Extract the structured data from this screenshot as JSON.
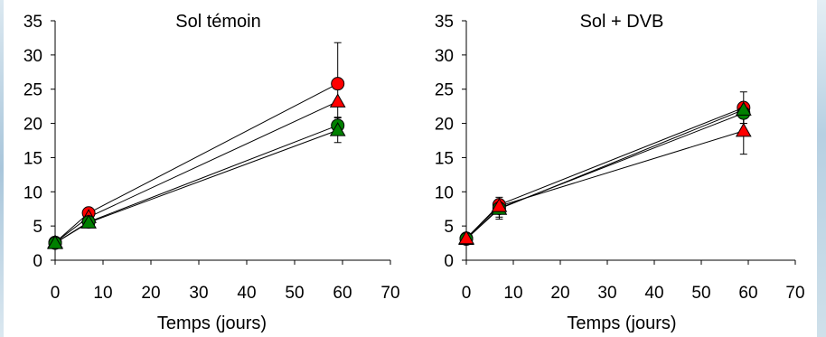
{
  "chart_data": [
    {
      "type": "line",
      "title": "Sol témoin",
      "xlabel": "Temps (jours)",
      "ylabel": "",
      "xlim": [
        0,
        70
      ],
      "ylim": [
        0,
        35
      ],
      "xticks": [
        0,
        10,
        20,
        30,
        40,
        50,
        60,
        70
      ],
      "yticks": [
        0,
        5,
        10,
        15,
        20,
        25,
        30,
        35
      ],
      "grid": false,
      "x": [
        0,
        7,
        59
      ],
      "series": [
        {
          "marker": "circle",
          "color": "#ff0000",
          "values": [
            2.6,
            6.9,
            25.8
          ],
          "error": [
            0.4,
            0.6,
            6.0
          ]
        },
        {
          "marker": "triangle",
          "color": "#ff0000",
          "values": [
            2.6,
            6.3,
            23.2
          ],
          "error": [
            0.3,
            0.5,
            0
          ]
        },
        {
          "marker": "circle",
          "color": "#008000",
          "values": [
            2.5,
            5.6,
            19.7
          ],
          "error": [
            0.3,
            0.5,
            1.2
          ]
        },
        {
          "marker": "triangle",
          "color": "#008000",
          "values": [
            2.5,
            5.5,
            19.0
          ],
          "error": [
            0.3,
            0.4,
            1.8
          ]
        }
      ]
    },
    {
      "type": "line",
      "title": "Sol + DVB",
      "xlabel": "Temps (jours)",
      "ylabel": "",
      "xlim": [
        0,
        70
      ],
      "ylim": [
        0,
        35
      ],
      "xticks": [
        0,
        10,
        20,
        30,
        40,
        50,
        60,
        70
      ],
      "yticks": [
        0,
        5,
        10,
        15,
        20,
        25,
        30,
        35
      ],
      "grid": false,
      "x": [
        0,
        7,
        59
      ],
      "series": [
        {
          "marker": "circle",
          "color": "#ff0000",
          "values": [
            3.2,
            8.1,
            22.3
          ],
          "error": [
            0.3,
            0.6,
            2.3
          ]
        },
        {
          "marker": "circle",
          "color": "#008000",
          "values": [
            3.1,
            7.6,
            21.5
          ],
          "error": [
            0.3,
            1.6,
            1.5
          ]
        },
        {
          "marker": "triangle",
          "color": "#008000",
          "values": [
            3.1,
            7.5,
            22.0
          ],
          "error": [
            0.3,
            1.2,
            0
          ]
        },
        {
          "marker": "triangle",
          "color": "#ff0000",
          "values": [
            3.2,
            7.9,
            18.9
          ],
          "error": [
            0.3,
            0.8,
            3.4
          ]
        }
      ]
    }
  ]
}
